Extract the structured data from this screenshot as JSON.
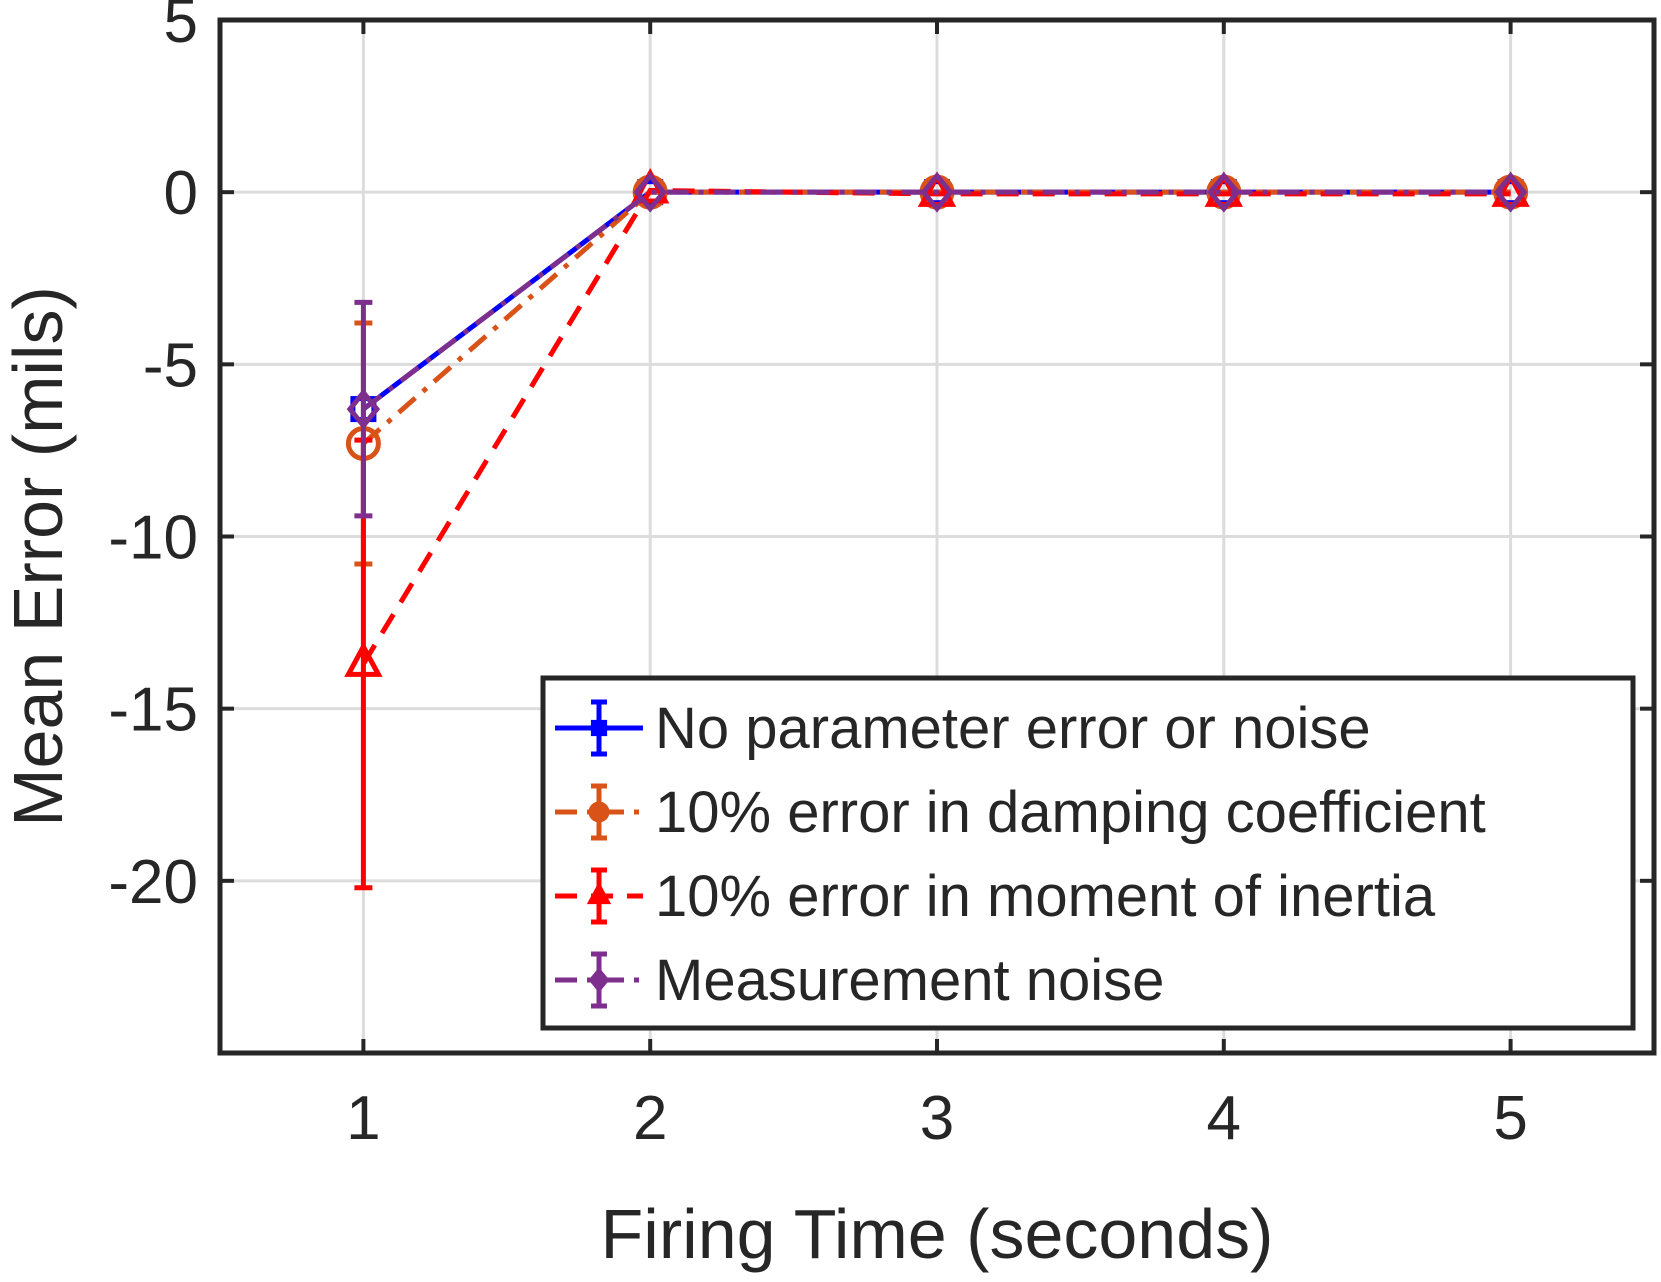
{
  "chart_data": {
    "type": "line",
    "title": "",
    "xlabel": "Firing Time (seconds)",
    "ylabel": "Mean Error (mils)",
    "xlim": [
      0.5,
      5.5
    ],
    "ylim": [
      -25,
      5
    ],
    "xticks": [
      1,
      2,
      3,
      4,
      5
    ],
    "yticks": [
      5,
      0,
      -5,
      -10,
      -15,
      -20
    ],
    "grid": true,
    "legend_position": "bottom-right",
    "x": [
      1,
      2,
      3,
      4,
      5
    ],
    "series": [
      {
        "name": "No parameter error or noise",
        "color": "#0000ff",
        "line": "solid",
        "marker": "square",
        "values": [
          -6.3,
          0,
          0,
          0,
          0
        ],
        "error": [
          0,
          0,
          0,
          0,
          0
        ]
      },
      {
        "name": "10% error in damping coefficient",
        "color": "#d95319",
        "line": "dashdot",
        "marker": "circle",
        "values": [
          -7.3,
          0,
          0,
          0,
          0
        ],
        "error": [
          3.5,
          0,
          0,
          0,
          0
        ]
      },
      {
        "name": "10% error in moment of inertia",
        "color": "#ff0000",
        "line": "dashed",
        "marker": "triangle",
        "values": [
          -13.7,
          0.05,
          -0.05,
          -0.05,
          -0.05
        ],
        "error": [
          6.5,
          0,
          0,
          0,
          0
        ]
      },
      {
        "name": "Measurement noise",
        "color": "#7e2f8e",
        "line": "dashdot",
        "marker": "diamond",
        "values": [
          -6.3,
          0,
          0,
          0,
          0
        ],
        "error": [
          3.1,
          0,
          0,
          0,
          0
        ]
      }
    ]
  }
}
